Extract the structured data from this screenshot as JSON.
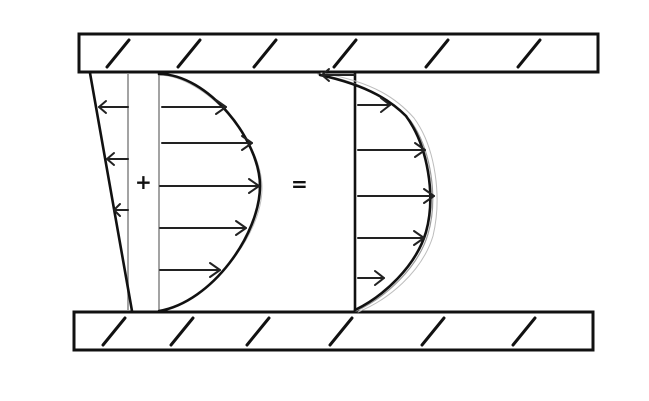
{
  "symbols": {
    "plus": "+",
    "equals": "="
  },
  "colors": {
    "ink": "#111111",
    "pencil": "#9a9a9a",
    "background": "#ffffff"
  }
}
